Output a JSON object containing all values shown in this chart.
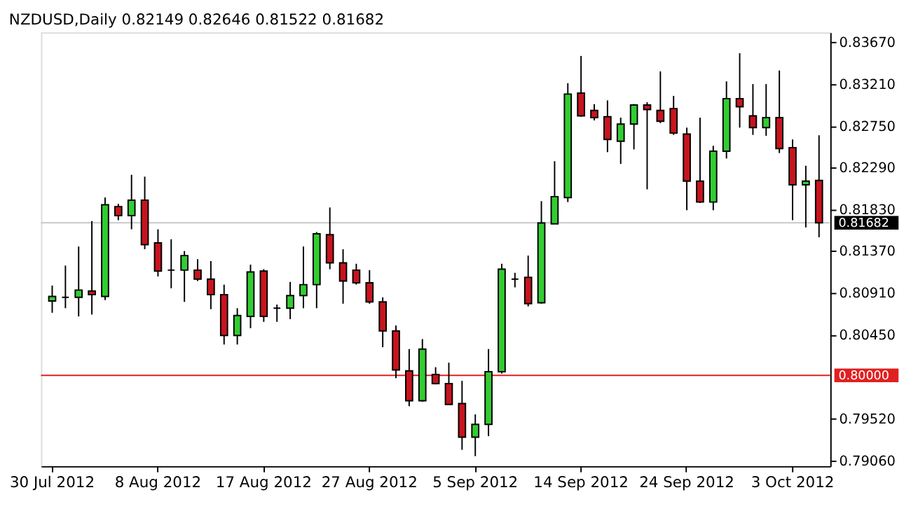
{
  "chart_data": {
    "type": "candlestick",
    "title": "NZDUSD,Daily  0.82149 0.82646 0.81522 0.81682",
    "categories": [
      "30 Jul 2012",
      null,
      null,
      null,
      null,
      null,
      null,
      null,
      "8 Aug 2012",
      null,
      null,
      null,
      null,
      null,
      null,
      null,
      "17 Aug 2012",
      null,
      null,
      null,
      null,
      null,
      null,
      null,
      "27 Aug 2012",
      null,
      null,
      null,
      null,
      null,
      null,
      null,
      "5 Sep 2012",
      null,
      null,
      null,
      null,
      null,
      null,
      null,
      "14 Sep 2012",
      null,
      null,
      null,
      null,
      null,
      null,
      null,
      "24 Sep 2012",
      null,
      null,
      null,
      null,
      null,
      null,
      null,
      "3 Oct 2012",
      null,
      null
    ],
    "ohlc": [
      [
        0.8082,
        0.8099,
        0.8069,
        0.8087
      ],
      [
        0.8086,
        0.8121,
        0.8074,
        0.8086
      ],
      [
        0.8086,
        0.8142,
        0.8065,
        0.8094
      ],
      [
        0.8093,
        0.817,
        0.8067,
        0.8089
      ],
      [
        0.8087,
        0.8196,
        0.8083,
        0.8188
      ],
      [
        0.8186,
        0.8189,
        0.8171,
        0.8176
      ],
      [
        0.8176,
        0.8221,
        0.8161,
        0.8193
      ],
      [
        0.8193,
        0.8219,
        0.8139,
        0.8144
      ],
      [
        0.8146,
        0.8161,
        0.8109,
        0.8115
      ],
      [
        0.8116,
        0.815,
        0.8096,
        0.8116
      ],
      [
        0.8116,
        0.8137,
        0.8081,
        0.8132
      ],
      [
        0.8116,
        0.8128,
        0.8104,
        0.8106
      ],
      [
        0.8106,
        0.8126,
        0.8073,
        0.8089
      ],
      [
        0.8089,
        0.81,
        0.8034,
        0.8044
      ],
      [
        0.8044,
        0.8074,
        0.8034,
        0.8066
      ],
      [
        0.8065,
        0.8122,
        0.8052,
        0.8114
      ],
      [
        0.8115,
        0.8117,
        0.8059,
        0.8065
      ],
      [
        0.8074,
        0.8078,
        0.8059,
        0.8074
      ],
      [
        0.8074,
        0.8103,
        0.8062,
        0.8088
      ],
      [
        0.8088,
        0.8142,
        0.8074,
        0.81
      ],
      [
        0.81,
        0.8158,
        0.8074,
        0.8156
      ],
      [
        0.8155,
        0.8185,
        0.8117,
        0.8124
      ],
      [
        0.8124,
        0.8139,
        0.8079,
        0.8104
      ],
      [
        0.8116,
        0.8123,
        0.81,
        0.8102
      ],
      [
        0.8102,
        0.8116,
        0.8079,
        0.8081
      ],
      [
        0.8081,
        0.8086,
        0.8031,
        0.8049
      ],
      [
        0.8049,
        0.8055,
        0.7997,
        0.8006
      ],
      [
        0.8005,
        0.8029,
        0.7966,
        0.7972
      ],
      [
        0.7972,
        0.804,
        0.7971,
        0.8029
      ],
      [
        0.8001,
        0.8009,
        0.799,
        0.7991
      ],
      [
        0.7991,
        0.8014,
        0.7968,
        0.7968
      ],
      [
        0.7969,
        0.7994,
        0.7918,
        0.7932
      ],
      [
        0.7932,
        0.7957,
        0.7911,
        0.7946
      ],
      [
        0.7946,
        0.8029,
        0.7933,
        0.8004
      ],
      [
        0.8004,
        0.8123,
        0.8002,
        0.8117
      ],
      [
        0.8106,
        0.8113,
        0.8097,
        0.8106
      ],
      [
        0.8108,
        0.8132,
        0.8076,
        0.8079
      ],
      [
        0.808,
        0.8192,
        0.8079,
        0.8168
      ],
      [
        0.8167,
        0.8236,
        0.8167,
        0.8197
      ],
      [
        0.8196,
        0.8322,
        0.8191,
        0.831
      ],
      [
        0.8311,
        0.8352,
        0.8285,
        0.8286
      ],
      [
        0.8292,
        0.8299,
        0.8281,
        0.8284
      ],
      [
        0.8285,
        0.8303,
        0.8246,
        0.826
      ],
      [
        0.8258,
        0.8284,
        0.8233,
        0.8277
      ],
      [
        0.8277,
        0.8299,
        0.8249,
        0.8298
      ],
      [
        0.8298,
        0.8301,
        0.8205,
        0.8293
      ],
      [
        0.8292,
        0.8335,
        0.8278,
        0.828
      ],
      [
        0.8294,
        0.8308,
        0.8265,
        0.8267
      ],
      [
        0.8266,
        0.8273,
        0.8182,
        0.8214
      ],
      [
        0.8214,
        0.8284,
        0.819,
        0.8191
      ],
      [
        0.8191,
        0.8253,
        0.8182,
        0.8247
      ],
      [
        0.8247,
        0.8324,
        0.8239,
        0.8305
      ],
      [
        0.8305,
        0.8355,
        0.8273,
        0.8296
      ],
      [
        0.8286,
        0.8321,
        0.8265,
        0.8273
      ],
      [
        0.8273,
        0.8321,
        0.8264,
        0.8284
      ],
      [
        0.8284,
        0.8336,
        0.8245,
        0.825
      ],
      [
        0.8251,
        0.826,
        0.8171,
        0.821
      ],
      [
        0.821,
        0.8231,
        0.8163,
        0.8214
      ],
      [
        0.82149,
        0.82646,
        0.81522,
        0.81682
      ]
    ],
    "colors": [
      "#32cd32",
      "#000000",
      "#32cd32",
      "#c8141e",
      "#32cd32",
      "#c8141e",
      "#32cd32",
      "#c8141e",
      "#c8141e",
      "#000000",
      "#32cd32",
      "#c8141e",
      "#c8141e",
      "#c8141e",
      "#32cd32",
      "#32cd32",
      "#c8141e",
      "#000000",
      "#32cd32",
      "#32cd32",
      "#32cd32",
      "#c8141e",
      "#c8141e",
      "#c8141e",
      "#c8141e",
      "#c8141e",
      "#c8141e",
      "#c8141e",
      "#32cd32",
      "#c8141e",
      "#c8141e",
      "#c8141e",
      "#32cd32",
      "#32cd32",
      "#32cd32",
      "#000000",
      "#c8141e",
      "#32cd32",
      "#32cd32",
      "#32cd32",
      "#c8141e",
      "#c8141e",
      "#c8141e",
      "#32cd32",
      "#32cd32",
      "#c8141e",
      "#c8141e",
      "#c8141e",
      "#c8141e",
      "#c8141e",
      "#32cd32",
      "#32cd32",
      "#c8141e",
      "#c8141e",
      "#32cd32",
      "#c8141e",
      "#c8141e",
      "#32cd32",
      "#c8141e"
    ],
    "ylim": [
      0.79,
      0.8378
    ],
    "yticks": [
      {
        "value": 0.8367,
        "label": "0.83670"
      },
      {
        "value": 0.8321,
        "label": "0.83210"
      },
      {
        "value": 0.8275,
        "label": "0.82750"
      },
      {
        "value": 0.8229,
        "label": "0.82290"
      },
      {
        "value": 0.8183,
        "label": "0.81830"
      },
      {
        "value": 0.8137,
        "label": "0.81370"
      },
      {
        "value": 0.8091,
        "label": "0.80910"
      },
      {
        "value": 0.8045,
        "label": "0.80450"
      },
      {
        "value": 0.7952,
        "label": "0.79520"
      },
      {
        "value": 0.7906,
        "label": "0.79060"
      }
    ],
    "ref_lines": [
      {
        "axis": "y",
        "value": 0.8,
        "label": "0.80000",
        "color": "#e02020"
      },
      {
        "axis": "y",
        "value": 0.81682,
        "label": "0.81682",
        "color": "#c8c8c8"
      }
    ],
    "grid": false,
    "legend": false
  }
}
